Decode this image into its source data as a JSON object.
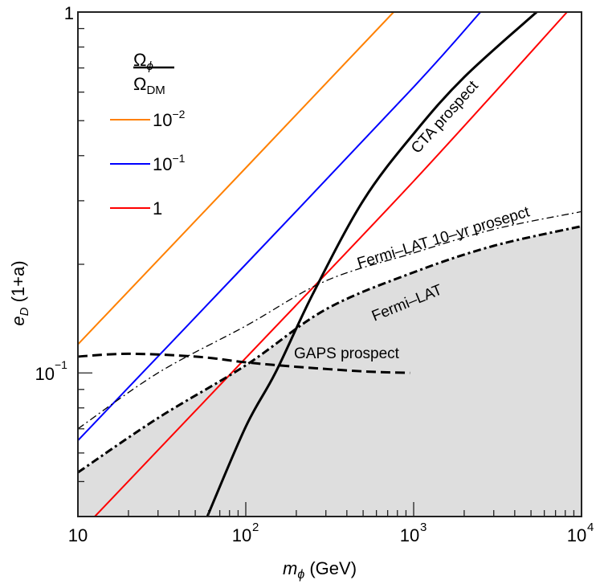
{
  "chart_data": {
    "type": "line",
    "title": "",
    "xlabel": "m_φ (GeV)",
    "ylabel": "e_D (1+a)",
    "xscale": "log",
    "yscale": "log",
    "xlim": [
      10,
      10000
    ],
    "ylim": [
      0.04,
      1
    ],
    "grid": false,
    "x_ticks": [
      "10",
      "10^2",
      "10^3",
      "10^4"
    ],
    "y_ticks": [
      "10^-1",
      "1"
    ],
    "legend": {
      "position": "upper left (inside)",
      "title_numerator": "Ω_φ",
      "title_denominator": "Ω_DM",
      "entries": [
        {
          "label": "10^-2",
          "color": "#ff8000"
        },
        {
          "label": "10^-1",
          "color": "#0000ff"
        },
        {
          "label": "1",
          "color": "#ff0000"
        }
      ]
    },
    "series": [
      {
        "name": "Ω_φ/Ω_DM = 10^-2",
        "color": "#ff8000",
        "style": "solid",
        "x": [
          10,
          100,
          760
        ],
        "y": [
          0.12,
          0.37,
          1.0
        ]
      },
      {
        "name": "Ω_φ/Ω_DM = 10^-1",
        "color": "#0000ff",
        "style": "solid",
        "x": [
          10,
          100,
          1000,
          2500
        ],
        "y": [
          0.065,
          0.2,
          0.62,
          1.0
        ]
      },
      {
        "name": "Ω_φ/Ω_DM = 1",
        "color": "#ff0000",
        "style": "solid",
        "x": [
          12.6,
          100,
          1000,
          8200
        ],
        "y": [
          0.04,
          0.11,
          0.34,
          1.0
        ]
      },
      {
        "name": "CTA prospect",
        "color": "#000000",
        "style": "solid-thick",
        "x": [
          59,
          100,
          150,
          250,
          500,
          1000,
          2000,
          5400
        ],
        "y": [
          0.04,
          0.071,
          0.1,
          0.165,
          0.3,
          0.46,
          0.66,
          1.0
        ]
      },
      {
        "name": "Fermi-LAT",
        "color": "#000000",
        "style": "dash-dot-thick",
        "shaded_below": true,
        "x": [
          10,
          30,
          100,
          300,
          1000,
          3000,
          10000
        ],
        "y": [
          0.053,
          0.075,
          0.105,
          0.15,
          0.19,
          0.225,
          0.255
        ]
      },
      {
        "name": "Fermi-LAT 10-yr prosepct",
        "color": "#000000",
        "style": "dash-dot-thin",
        "x": [
          10,
          30,
          100,
          300,
          1000,
          3000,
          10000
        ],
        "y": [
          0.07,
          0.1,
          0.135,
          0.18,
          0.215,
          0.25,
          0.28
        ]
      },
      {
        "name": "GAPS prospect",
        "color": "#000000",
        "style": "dashed",
        "x": [
          10,
          20,
          50,
          100,
          200,
          500,
          950
        ],
        "y": [
          0.111,
          0.113,
          0.111,
          0.107,
          0.104,
          0.101,
          0.1
        ]
      }
    ],
    "annotations": [
      {
        "text": "CTA prospect",
        "rotation_deg": -48
      },
      {
        "text": "Fermi–LAT 10–yr prosepct",
        "rotation_deg": -17
      },
      {
        "text": "Fermi–LAT",
        "rotation_deg": -22
      },
      {
        "text": "GAPS  prospect",
        "rotation_deg": 0
      }
    ],
    "shaded_region_color": "#dedede"
  },
  "labels": {
    "x_ticks": [
      "10",
      "10",
      "10",
      "10"
    ],
    "x_exps": [
      "",
      "2",
      "3",
      "4"
    ],
    "y_tick_top": "1",
    "y_tick_mid": "10",
    "y_tick_mid_exp": "−1",
    "xlabel_var": "m",
    "xlabel_sub": "ϕ",
    "xlabel_unit": " (GeV)",
    "ylabel_var": "e",
    "ylabel_sub": "D",
    "ylabel_rest": " (1+a)",
    "legend_num": "Ω",
    "legend_num_sub": "ϕ",
    "legend_den": "Ω",
    "legend_den_sub": "DM",
    "legend_1": "10",
    "legend_1_exp": "−2",
    "legend_2": "10",
    "legend_2_exp": "−1",
    "legend_3": "1",
    "annot_cta": "CTA  prospect",
    "annot_fermi10": "Fermi–LAT 10–yr prosepct",
    "annot_fermi": "Fermi–LAT",
    "annot_gaps": "GAPS  prospect"
  }
}
